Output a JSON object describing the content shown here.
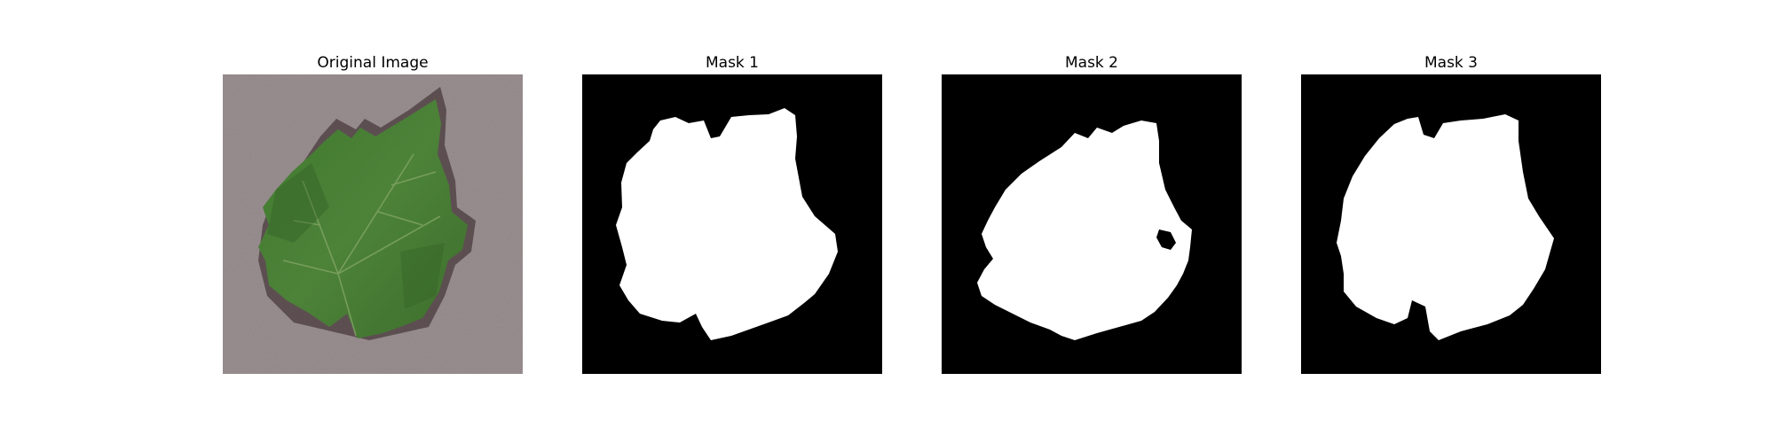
{
  "panels": [
    {
      "title": "Original Image",
      "kind": "photo",
      "subject": "grape-leaf"
    },
    {
      "title": "Mask 1",
      "kind": "mask"
    },
    {
      "title": "Mask 2",
      "kind": "mask"
    },
    {
      "title": "Mask 3",
      "kind": "mask"
    }
  ],
  "colors": {
    "background": "#ffffff",
    "mask_background": "#000000",
    "mask_foreground": "#ffffff",
    "photo_background": "#9b9092",
    "leaf_fill": "#4a7a35",
    "leaf_dark": "#2f5a22",
    "leaf_vein": "#86a86a",
    "leaf_shadow": "#4a3b3c"
  }
}
